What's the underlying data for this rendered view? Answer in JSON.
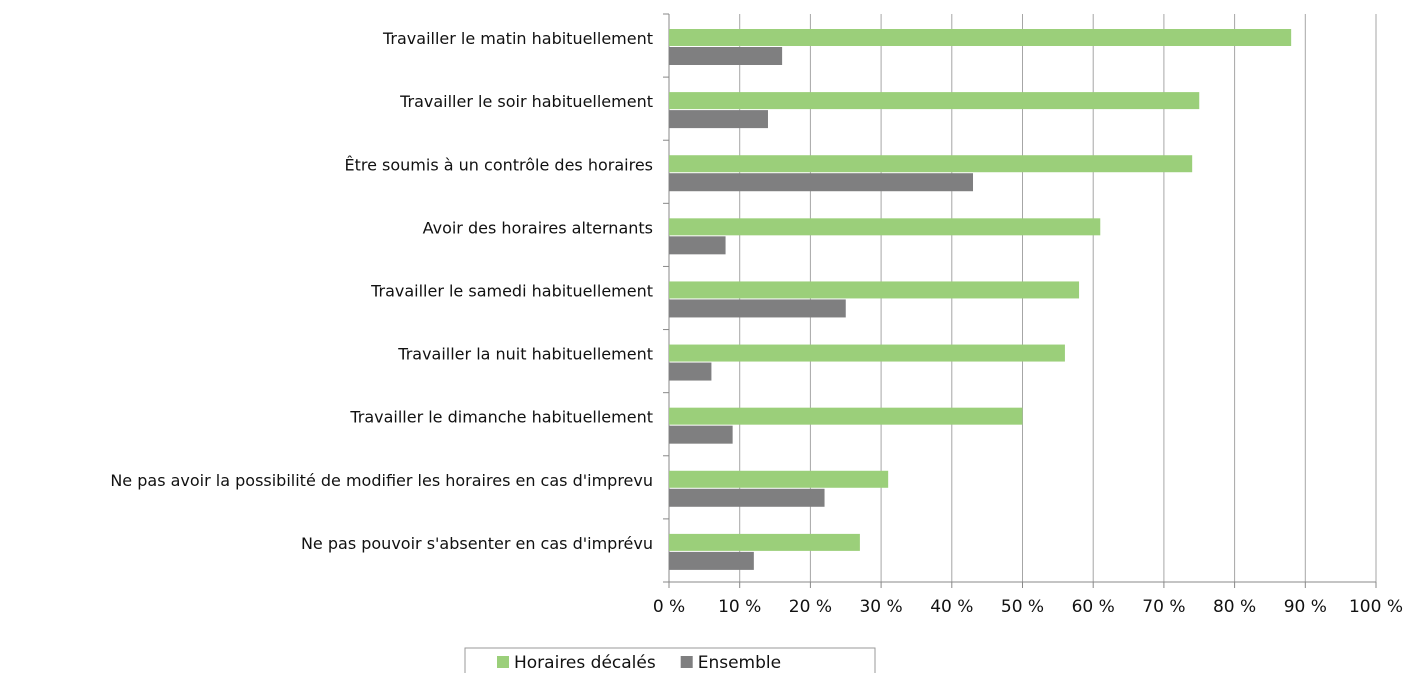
{
  "chart_data": {
    "type": "hbar",
    "categories": [
      "Travailler le matin habituellement",
      "Travailler le soir habituellement",
      "Être soumis à un contrôle des horaires",
      "Avoir des horaires alternants",
      "Travailler le samedi habituellement",
      "Travailler la nuit habituellement",
      "Travailler le dimanche habituellement",
      "Ne pas avoir la possibilité de modifier les horaires en cas d'imprevu",
      "Ne pas pouvoir s'absenter en cas d'imprévu"
    ],
    "series": [
      {
        "name": "Horaires décalés",
        "color": "#9bcf7a",
        "values": [
          88,
          75,
          74,
          61,
          58,
          56,
          50,
          31,
          27
        ]
      },
      {
        "name": "Ensemble",
        "color": "#7f7f80",
        "values": [
          16,
          14,
          43,
          8,
          25,
          6,
          9,
          22,
          12
        ]
      }
    ],
    "xlim": [
      0,
      100
    ],
    "xticks": [
      {
        "value": 0,
        "label": "0 %"
      },
      {
        "value": 10,
        "label": "10 %"
      },
      {
        "value": 20,
        "label": "20 %"
      },
      {
        "value": 30,
        "label": "30 %"
      },
      {
        "value": 40,
        "label": "40 %"
      },
      {
        "value": 50,
        "label": "50 %"
      },
      {
        "value": 60,
        "label": "60 %"
      },
      {
        "value": 70,
        "label": "70 %"
      },
      {
        "value": 80,
        "label": "80 %"
      },
      {
        "value": 90,
        "label": "90 %"
      },
      {
        "value": 100,
        "label": "100 %"
      }
    ],
    "grid": true,
    "legend": "bottom"
  }
}
